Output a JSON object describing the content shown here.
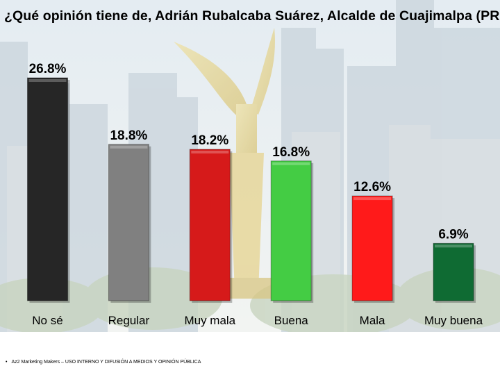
{
  "title": "¿Qué opinión tiene de, Adrián Rubalcaba Suárez, Alcalde de Cuajimalpa (PRI)?",
  "footer": "Az2 Marketing Makers – USO INTERNO Y DIFUSIÓN A MEDIOS Y OPINIÓN PÚBLICA",
  "chart_data": {
    "type": "bar",
    "categories": [
      "No sé",
      "Regular",
      "Muy mala",
      "Buena",
      "Mala",
      "Muy buena"
    ],
    "values": [
      26.8,
      18.8,
      18.2,
      16.8,
      12.6,
      6.9
    ],
    "value_labels": [
      "26.8%",
      "18.8%",
      "18.2%",
      "16.8%",
      "12.6%",
      "6.9%"
    ],
    "colors": [
      "#262626",
      "#808080",
      "#d61a1a",
      "#44cc44",
      "#ff1a1a",
      "#0f6b33"
    ],
    "ylim": [
      0,
      26.8
    ],
    "grid": false,
    "legend": "none"
  }
}
